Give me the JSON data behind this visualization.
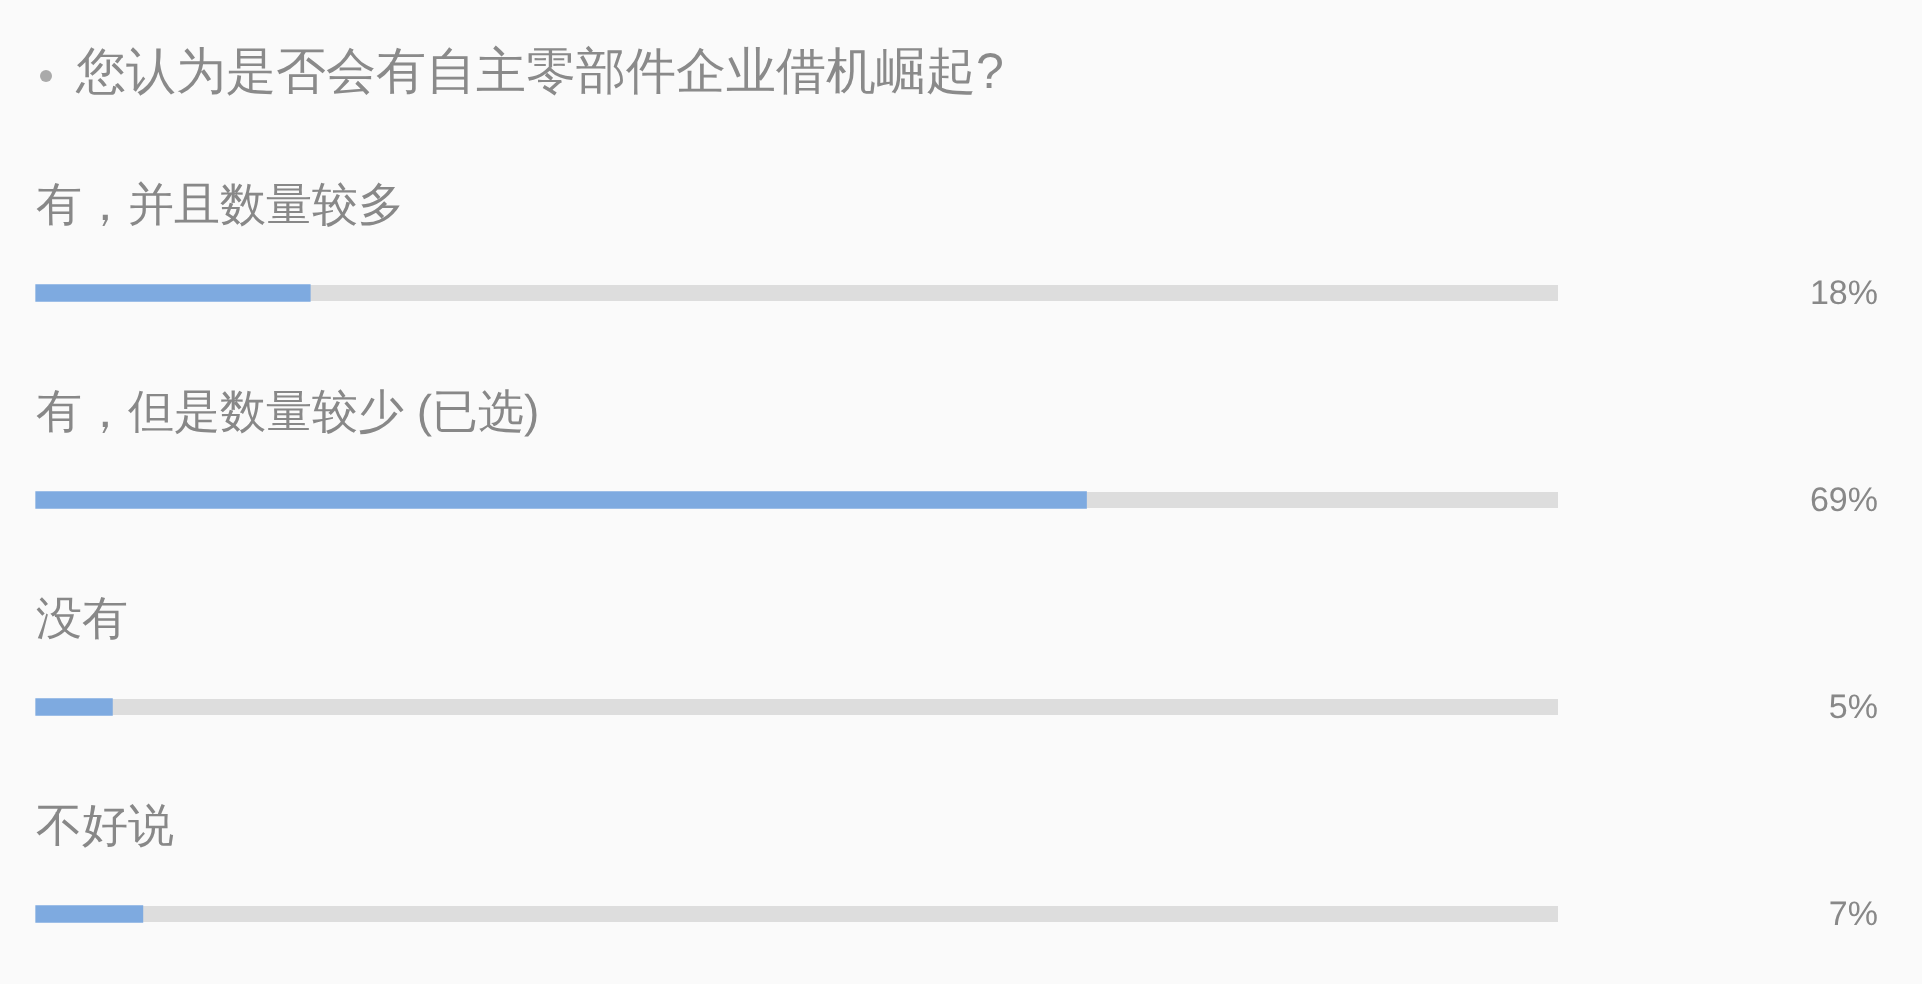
{
  "chart_data": {
    "type": "bar",
    "orientation": "horizontal",
    "title": "您认为是否会有自主零部件企业借机崛起?",
    "categories": [
      "有，并且数量较多",
      "有，但是数量较少 (已选)",
      "没有",
      "不好说"
    ],
    "values": [
      18,
      69,
      5,
      7
    ],
    "color": "#7eaae0",
    "value_labels": [
      "18%",
      "69%",
      "5%",
      "7%"
    ],
    "xlim": [
      0,
      100
    ],
    "tick_labels": "y"
  }
}
